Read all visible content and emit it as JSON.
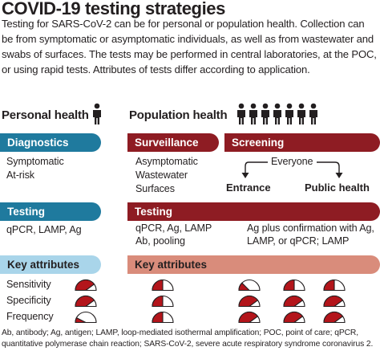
{
  "title": "COVID-19 testing strategies",
  "intro": "Testing for SARS-CoV-2 can be for personal or population health. Collection can be from symptomatic or asymptomatic individuals, as well as from wastewater and swabs of surfaces. The tests may be performed in central laboratories, at the POC, or using rapid tests. Attributes of tests differ according to application.",
  "personal": {
    "heading": "Personal health",
    "diagnostics": {
      "label": "Diagnostics",
      "items": [
        "Symptomatic",
        "At-risk"
      ]
    },
    "testing": {
      "label": "Testing",
      "text": "qPCR, LAMP, Ag"
    },
    "attributes": {
      "label": "Key attributes",
      "rows": [
        {
          "name": "Sensitivity",
          "level": 0.8
        },
        {
          "name": "Specificity",
          "level": 0.8
        },
        {
          "name": "Frequency",
          "level": 0.15
        }
      ]
    }
  },
  "population": {
    "heading": "Population health",
    "surveillance": {
      "label": "Surveillance",
      "items": [
        "Asymptomatic",
        "Wastewater",
        "Surfaces"
      ]
    },
    "screening": {
      "label": "Screening",
      "everyone": "Everyone",
      "entrance": "Entrance",
      "public_health": "Public health"
    },
    "testing": {
      "label": "Testing",
      "left_lines": [
        "qPCR, Ag, LAMP",
        "Ab, pooling"
      ],
      "right_lines": [
        "Ag plus confirmation with Ag,",
        "LAMP, or qPCR; LAMP"
      ]
    },
    "attributes": {
      "label": "Key attributes",
      "columns": [
        {
          "sensitivity": 0.5,
          "specificity": 0.5,
          "frequency": 0.5
        },
        {
          "sensitivity": 0.25,
          "specificity": 0.8,
          "frequency": 0.8
        },
        {
          "sensitivity": 0.5,
          "specificity": 0.8,
          "frequency": 0.8
        },
        {
          "sensitivity": 0.5,
          "specificity": 0.8,
          "frequency": 0.8
        }
      ]
    }
  },
  "footnote": "Ab, antibody; Ag, antigen; LAMP, loop-mediated isothermal amplification; POC, point of care; qPCR, quantitative polymerase chain reaction; SARS-CoV-2, severe acute respiratory syndrome coronavirus 2.",
  "colors": {
    "blue": "#1f7a9e",
    "light_blue": "#a9d5ea",
    "red": "#8e1c23",
    "salmon": "#d98c7b",
    "gauge_fill": "#b3151b"
  },
  "icons": [
    "person-icon",
    "population-people-icon",
    "gauge-icon",
    "arrow-icon"
  ]
}
